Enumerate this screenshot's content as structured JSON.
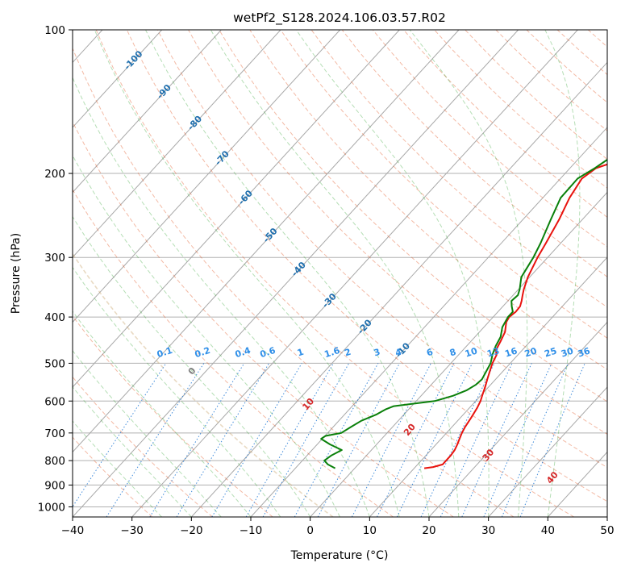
{
  "chart_data": {
    "type": "line",
    "title": "wetPf2_S128.2024.106.03.57.R02",
    "xlabel": "Temperature (°C)",
    "ylabel": "Pressure (hPa)",
    "xlim": [
      -40,
      50
    ],
    "ylim": [
      1050,
      100
    ],
    "y_scale": "log",
    "x_ticks": [
      -40,
      -30,
      -20,
      -10,
      0,
      10,
      20,
      30,
      40,
      50
    ],
    "y_ticks": [
      100,
      200,
      300,
      400,
      500,
      600,
      700,
      800,
      900,
      1000
    ],
    "grid": true,
    "series": [
      {
        "color": "#e8130e",
        "pressure": [
          830,
          825,
          815,
          800,
          780,
          760,
          740,
          720,
          700,
          680,
          650,
          620,
          600,
          580,
          560,
          540,
          520,
          500,
          480,
          470,
          450,
          430,
          410,
          400,
          390,
          380,
          370,
          360,
          350,
          330,
          300,
          280,
          250,
          225,
          205,
          195,
          185,
          180,
          170,
          160,
          150,
          140,
          130,
          125,
          115,
          110,
          105,
          100
        ],
        "temperature": [
          11.7,
          13.0,
          14.2,
          14.2,
          14.2,
          14.0,
          13.6,
          13.1,
          12.6,
          12.2,
          11.8,
          11.3,
          10.8,
          10.1,
          9.4,
          8.6,
          7.8,
          7.0,
          6.4,
          5.6,
          5.0,
          4.3,
          3.0,
          2.7,
          3.0,
          2.9,
          2.3,
          1.6,
          0.9,
          -0.3,
          -1.7,
          -2.5,
          -3.9,
          -5.5,
          -6.4,
          -5.6,
          -1.8,
          1.6,
          6.8,
          10.8,
          12.8,
          13.8,
          14.2,
          15.2,
          20.2,
          24.3,
          28.6,
          33.6
        ]
      },
      {
        "color": "#0a800a",
        "pressure": [
          830,
          815,
          800,
          780,
          760,
          740,
          720,
          710,
          700,
          680,
          660,
          640,
          625,
          615,
          600,
          585,
          570,
          555,
          540,
          520,
          500,
          480,
          460,
          440,
          420,
          400,
          390,
          380,
          370,
          360,
          350,
          330,
          300,
          280,
          250,
          225,
          205,
          195,
          185,
          170,
          160,
          152,
          148,
          140,
          130,
          120,
          110,
          100
        ],
        "temperature": [
          -3.3,
          -5.1,
          -6.3,
          -5.9,
          -5.0,
          -7.8,
          -10.2,
          -9.9,
          -7.7,
          -7.0,
          -6.2,
          -4.6,
          -3.9,
          -3.0,
          3.1,
          5.4,
          6.8,
          7.5,
          7.7,
          7.2,
          6.7,
          5.7,
          4.9,
          4.3,
          3.1,
          2.5,
          2.5,
          1.5,
          0.6,
          0.8,
          0.2,
          -1.4,
          -2.4,
          -3.4,
          -5.3,
          -7.0,
          -7.1,
          -5.8,
          -4.8,
          -4.8,
          -6.1,
          -8.9,
          -10.6,
          -9.8,
          -7.2,
          -5.6,
          -4.1,
          -1.8
        ]
      }
    ],
    "dry_adiabat_labels": [
      "-100",
      "-90",
      "-80",
      "-70",
      "-60",
      "-50",
      "-40",
      "-30",
      "-20",
      "-10"
    ],
    "mixing_ratio_labels": [
      "0.1",
      "0.2",
      "0.4",
      "0.6",
      "1",
      "1.6",
      "2",
      "3",
      "4",
      "6",
      "8",
      "10",
      "13",
      "16",
      "20",
      "25",
      "30",
      "36"
    ],
    "moist_adiabat_labels": [
      "0",
      "10",
      "20",
      "30",
      "40"
    ],
    "colors": {
      "dry_adiabat": "#e2531e",
      "moist_adiabat": "#2ca02c",
      "mixing_ratio": "#1f77d4",
      "isotherm": "#555555",
      "dry_label": "#1f6fae",
      "mixing_label": "#2f8fe8",
      "moist_label_warm": "#d62728",
      "moist_label_zero": "#7f7f7f",
      "dry_adiabat_zero": "#c8a26a"
    }
  }
}
